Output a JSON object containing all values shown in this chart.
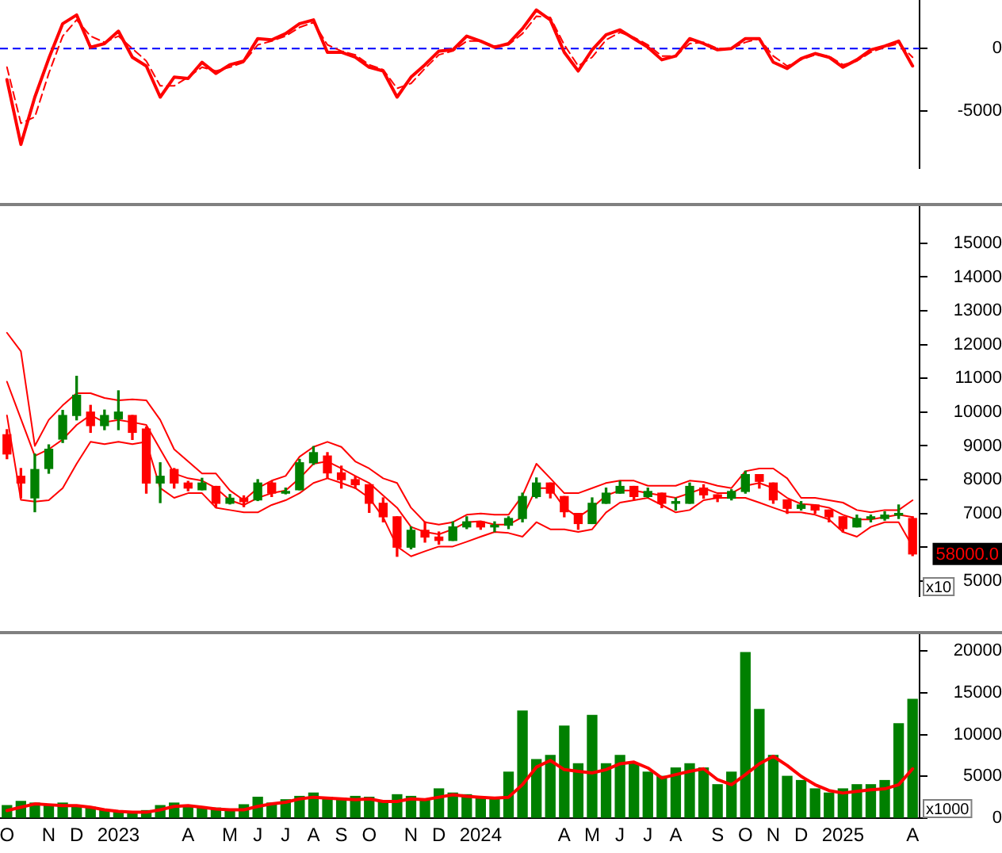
{
  "chart_data": [
    {
      "type": "line",
      "categories": [
        null,
        null,
        null,
        null,
        null,
        null,
        null,
        null,
        null,
        null,
        null,
        null,
        null,
        null,
        null,
        null,
        null,
        null,
        null,
        null,
        null,
        null,
        null,
        null,
        null,
        null,
        null,
        null,
        null,
        null,
        null,
        null,
        null,
        null,
        null,
        null,
        null,
        null,
        null,
        null,
        null,
        null,
        null,
        null,
        null,
        null,
        null,
        null,
        null,
        null,
        null,
        null,
        null,
        null,
        null,
        null,
        null,
        null,
        null,
        null,
        null,
        null,
        null,
        null,
        null,
        null
      ],
      "series": [
        {
          "color": "#ff0000",
          "values": [
            -2500,
            -7700,
            -3900,
            -800,
            2000,
            2700,
            100,
            400,
            1400,
            -700,
            -1400,
            -3900,
            -2300,
            -2400,
            -1100,
            -2000,
            -1300,
            -1000,
            800,
            700,
            1200,
            2000,
            2300,
            -300,
            -300,
            -700,
            -1500,
            -1800,
            -3900,
            -2300,
            -1300,
            -200,
            -100,
            1000,
            600,
            100,
            400,
            1600,
            3100,
            2300,
            -300,
            -1800,
            -100,
            1100,
            1500,
            800,
            100,
            -900,
            -600,
            800,
            400,
            -100,
            0,
            800,
            800,
            -1100,
            -1600,
            -800,
            -400,
            -700,
            -1500,
            -900,
            -100,
            200,
            600,
            -1400
          ]
        },
        {
          "color": "#ff0000",
          "line_style": "dashed",
          "values": [
            -1500,
            -6000,
            -5500,
            -2000,
            1000,
            2300,
            1000,
            500,
            1000,
            0,
            -1000,
            -3000,
            -3000,
            -2300,
            -1500,
            -1800,
            -1500,
            -1100,
            300,
            600,
            1000,
            1700,
            2100,
            300,
            -200,
            -500,
            -1300,
            -1700,
            -3200,
            -2800,
            -1600,
            -500,
            -200,
            600,
            600,
            200,
            300,
            1200,
            2600,
            2500,
            300,
            -1400,
            -700,
            700,
            1300,
            900,
            300,
            -600,
            -600,
            400,
            500,
            0,
            0,
            500,
            800,
            -600,
            -1400,
            -900,
            -500,
            -600,
            -1300,
            -1000,
            -300,
            100,
            400,
            -700
          ]
        }
      ],
      "ylim": [
        -9600,
        3900
      ],
      "yticks": [
        -5000,
        0
      ],
      "tick_labels": "y",
      "ref_lines": [
        {
          "axis": "y",
          "value": 0,
          "color": "#0000ff",
          "line_style": "dashed"
        }
      ]
    },
    {
      "type": "candlestick",
      "categories": [
        null,
        null,
        null,
        null,
        null,
        null,
        null,
        null,
        null,
        null,
        null,
        null,
        null,
        null,
        null,
        null,
        null,
        null,
        null,
        null,
        null,
        null,
        null,
        null,
        null,
        null,
        null,
        null,
        null,
        null,
        null,
        null,
        null,
        null,
        null,
        null,
        null,
        null,
        null,
        null,
        null,
        null,
        null,
        null,
        null,
        null,
        null,
        null,
        null,
        null,
        null,
        null,
        null,
        null,
        null,
        null,
        null,
        null,
        null,
        null,
        null,
        null,
        null,
        null,
        null,
        null
      ],
      "ohlc": [
        [
          9330,
          9480,
          8620,
          8760
        ],
        [
          8100,
          8330,
          7460,
          7900
        ],
        [
          7460,
          8760,
          7050,
          8300
        ],
        [
          8330,
          9030,
          8190,
          8900
        ],
        [
          9200,
          10050,
          9100,
          9900
        ],
        [
          9900,
          11060,
          9770,
          10500
        ],
        [
          10000,
          10200,
          9400,
          9600
        ],
        [
          9600,
          10060,
          9480,
          9900
        ],
        [
          9800,
          10630,
          9480,
          10000
        ],
        [
          9900,
          9900,
          9190,
          9400
        ],
        [
          9500,
          9560,
          7600,
          7900
        ],
        [
          7900,
          8500,
          7320,
          8100
        ],
        [
          8300,
          8330,
          7750,
          7900
        ],
        [
          7900,
          7950,
          7670,
          7750
        ],
        [
          7700,
          8040,
          7700,
          7900
        ],
        [
          7800,
          7800,
          7170,
          7300
        ],
        [
          7300,
          7560,
          7280,
          7450
        ],
        [
          7450,
          7520,
          7200,
          7350
        ],
        [
          7400,
          8000,
          7380,
          7900
        ],
        [
          7900,
          7950,
          7500,
          7600
        ],
        [
          7600,
          7750,
          7580,
          7650
        ],
        [
          7700,
          8600,
          7700,
          8500
        ],
        [
          8500,
          8980,
          8450,
          8800
        ],
        [
          8700,
          8800,
          8050,
          8200
        ],
        [
          8200,
          8400,
          7750,
          8000
        ],
        [
          8000,
          8100,
          7750,
          7850
        ],
        [
          7850,
          7850,
          7030,
          7300
        ],
        [
          7300,
          7460,
          6750,
          6900
        ],
        [
          6900,
          6900,
          5730,
          6000
        ],
        [
          6000,
          6600,
          5950,
          6500
        ],
        [
          6500,
          6750,
          6150,
          6300
        ],
        [
          6300,
          6450,
          6090,
          6200
        ],
        [
          6200,
          6750,
          6200,
          6600
        ],
        [
          6600,
          6900,
          6550,
          6750
        ],
        [
          6750,
          6750,
          6530,
          6600
        ],
        [
          6600,
          6750,
          6460,
          6650
        ],
        [
          6650,
          6900,
          6550,
          6850
        ],
        [
          6850,
          7600,
          6750,
          7500
        ],
        [
          7500,
          8050,
          7460,
          7900
        ],
        [
          7900,
          7900,
          7460,
          7600
        ],
        [
          7500,
          7500,
          6900,
          7050
        ],
        [
          7000,
          7000,
          6530,
          6700
        ],
        [
          6700,
          7460,
          6700,
          7300
        ],
        [
          7300,
          7750,
          7300,
          7600
        ],
        [
          7600,
          7950,
          7600,
          7800
        ],
        [
          7800,
          7800,
          7400,
          7500
        ],
        [
          7500,
          7750,
          7480,
          7650
        ],
        [
          7600,
          7600,
          7170,
          7300
        ],
        [
          7300,
          7450,
          7100,
          7350
        ],
        [
          7300,
          7900,
          7300,
          7800
        ],
        [
          7750,
          7850,
          7450,
          7550
        ],
        [
          7550,
          7550,
          7350,
          7450
        ],
        [
          7450,
          7700,
          7400,
          7650
        ],
        [
          7650,
          8250,
          7600,
          8150
        ],
        [
          8150,
          8150,
          7750,
          7950
        ],
        [
          7900,
          7900,
          7300,
          7400
        ],
        [
          7400,
          7400,
          7000,
          7150
        ],
        [
          7150,
          7350,
          7100,
          7250
        ],
        [
          7250,
          7250,
          7000,
          7100
        ],
        [
          7100,
          7100,
          6750,
          6900
        ],
        [
          6900,
          6900,
          6450,
          6550
        ],
        [
          6600,
          6950,
          6600,
          6850
        ],
        [
          6850,
          6950,
          6750,
          6900
        ],
        [
          6850,
          7050,
          6800,
          6950
        ],
        [
          6950,
          7250,
          6850,
          7000
        ],
        [
          6850,
          6900,
          5750,
          5800
        ]
      ],
      "colors": [
        "#ff0000",
        "#ff0000",
        "#008000",
        "#008000",
        "#008000",
        "#008000",
        "#ff0000",
        "#008000",
        "#008000",
        "#ff0000",
        "#ff0000",
        "#008000",
        "#ff0000",
        "#ff0000",
        "#008000",
        "#ff0000",
        "#008000",
        "#ff0000",
        "#008000",
        "#ff0000",
        "#008000",
        "#008000",
        "#008000",
        "#ff0000",
        "#ff0000",
        "#ff0000",
        "#ff0000",
        "#ff0000",
        "#ff0000",
        "#008000",
        "#ff0000",
        "#ff0000",
        "#008000",
        "#008000",
        "#ff0000",
        "#008000",
        "#008000",
        "#008000",
        "#008000",
        "#ff0000",
        "#ff0000",
        "#ff0000",
        "#008000",
        "#008000",
        "#008000",
        "#ff0000",
        "#008000",
        "#ff0000",
        "#008000",
        "#008000",
        "#ff0000",
        "#ff0000",
        "#008000",
        "#008000",
        "#ff0000",
        "#ff0000",
        "#ff0000",
        "#008000",
        "#ff0000",
        "#ff0000",
        "#ff0000",
        "#008000",
        "#008000",
        "#008000",
        "#008000",
        "#ff0000"
      ],
      "series": [
        {
          "type": "line",
          "color": "#ff0000",
          "values": [
            12350,
            11800,
            9000,
            9770,
            10200,
            10560,
            10560,
            10420,
            10350,
            10380,
            10350,
            9770,
            8900,
            8540,
            8180,
            8180,
            7680,
            7390,
            7750,
            7970,
            8110,
            8680,
            8970,
            9120,
            8970,
            8540,
            8330,
            8040,
            7900,
            7170,
            6740,
            6670,
            6740,
            6960,
            7000,
            6960,
            6960,
            7530,
            8470,
            8040,
            7600,
            7600,
            7750,
            7900,
            7970,
            7970,
            7820,
            7820,
            7820,
            7970,
            7930,
            7820,
            7750,
            8250,
            8330,
            8330,
            8040,
            7460,
            7460,
            7390,
            7320,
            7100,
            7030,
            7100,
            7100,
            7390
          ]
        },
        {
          "type": "line",
          "color": "#ff0000",
          "values": [
            10900,
            9800,
            8700,
            8900,
            9190,
            9620,
            9910,
            9700,
            9770,
            9700,
            9620,
            8900,
            8180,
            8040,
            7970,
            7750,
            7390,
            7250,
            7460,
            7600,
            7680,
            8040,
            8470,
            8540,
            8330,
            8110,
            7900,
            7530,
            7170,
            6600,
            6450,
            6380,
            6530,
            6740,
            6770,
            6670,
            6670,
            6890,
            7750,
            7750,
            7170,
            6890,
            7170,
            7530,
            7680,
            7680,
            7600,
            7530,
            7460,
            7600,
            7750,
            7600,
            7600,
            7820,
            7900,
            7750,
            7460,
            7280,
            7250,
            7170,
            6960,
            6820,
            6820,
            6890,
            6960,
            6890
          ]
        },
        {
          "type": "line",
          "color": "#ff0000",
          "values": [
            9900,
            7400,
            7350,
            7390,
            7750,
            8470,
            9120,
            9050,
            9120,
            9050,
            9120,
            7750,
            7460,
            7600,
            7600,
            7170,
            7100,
            7030,
            7030,
            7250,
            7390,
            7600,
            7900,
            8040,
            7900,
            7750,
            7460,
            6890,
            6020,
            5730,
            5880,
            6020,
            6020,
            6160,
            6310,
            6450,
            6420,
            6310,
            6740,
            6530,
            6530,
            6450,
            6530,
            7030,
            7320,
            7390,
            7460,
            7250,
            7030,
            7100,
            7390,
            7460,
            7460,
            7460,
            7320,
            7170,
            7030,
            7030,
            6960,
            6820,
            6450,
            6310,
            6600,
            6740,
            6740,
            6020
          ]
        }
      ],
      "ylim": [
        4550,
        16100
      ],
      "yticks": [
        5000,
        {
          "value": 6000,
          "label": null
        },
        7000,
        8000,
        9000,
        10000,
        11000,
        12000,
        13000,
        14000,
        15000
      ],
      "tick_labels": "y",
      "annotations": [
        "x10",
        "58000.0"
      ]
    },
    {
      "type": "bar",
      "categories": [
        "O",
        null,
        null,
        "N",
        null,
        "D",
        null,
        null,
        "2023",
        null,
        null,
        null,
        null,
        "A",
        null,
        null,
        "M",
        null,
        "J",
        null,
        "J",
        null,
        "A",
        null,
        "S",
        null,
        "O",
        null,
        null,
        "N",
        null,
        "D",
        null,
        null,
        "2024",
        null,
        null,
        null,
        null,
        null,
        "A",
        null,
        "M",
        null,
        "J",
        null,
        "J",
        null,
        "A",
        null,
        null,
        "S",
        null,
        "O",
        null,
        "N",
        null,
        "D",
        null,
        null,
        "2025",
        null,
        null,
        null,
        null,
        "A"
      ],
      "series": [
        {
          "type": "bar",
          "color": "#008000",
          "values": [
            1500,
            2000,
            1800,
            1600,
            1800,
            1500,
            1300,
            900,
            800,
            700,
            900,
            1500,
            1800,
            1500,
            1300,
            1200,
            1000,
            1600,
            2500,
            1800,
            2200,
            2600,
            3000,
            2500,
            2400,
            2600,
            2500,
            2000,
            2800,
            2600,
            2300,
            3500,
            3000,
            2800,
            2500,
            2300,
            5500,
            12800,
            7000,
            7500,
            11000,
            6500,
            12300,
            6500,
            7500,
            6500,
            5500,
            5000,
            6000,
            6500,
            6000,
            4000,
            5500,
            19800,
            13000,
            7500,
            5000,
            4500,
            3500,
            3000,
            3500,
            4000,
            4000,
            4500,
            11300,
            14200
          ]
        },
        {
          "type": "line",
          "color": "#ff0000",
          "values": [
            900,
            1300,
            1700,
            1600,
            1500,
            1500,
            1300,
            1000,
            800,
            700,
            700,
            1000,
            1400,
            1500,
            1300,
            1100,
            1000,
            1000,
            1400,
            1700,
            1900,
            2300,
            2500,
            2400,
            2300,
            2200,
            2300,
            2000,
            2000,
            2300,
            2200,
            2500,
            2800,
            2600,
            2500,
            2400,
            2500,
            4000,
            6100,
            6900,
            5800,
            5600,
            5400,
            5800,
            6500,
            6700,
            6000,
            4800,
            5200,
            5600,
            5900,
            4600,
            4000,
            5200,
            6500,
            7400,
            6300,
            5000,
            4000,
            3300,
            3000,
            3200,
            3400,
            3500,
            4000,
            5900
          ]
        }
      ],
      "ylim": [
        0,
        22000
      ],
      "yticks": [
        0,
        5000,
        10000,
        15000,
        20000
      ],
      "annotations": [
        "x1000"
      ]
    }
  ]
}
